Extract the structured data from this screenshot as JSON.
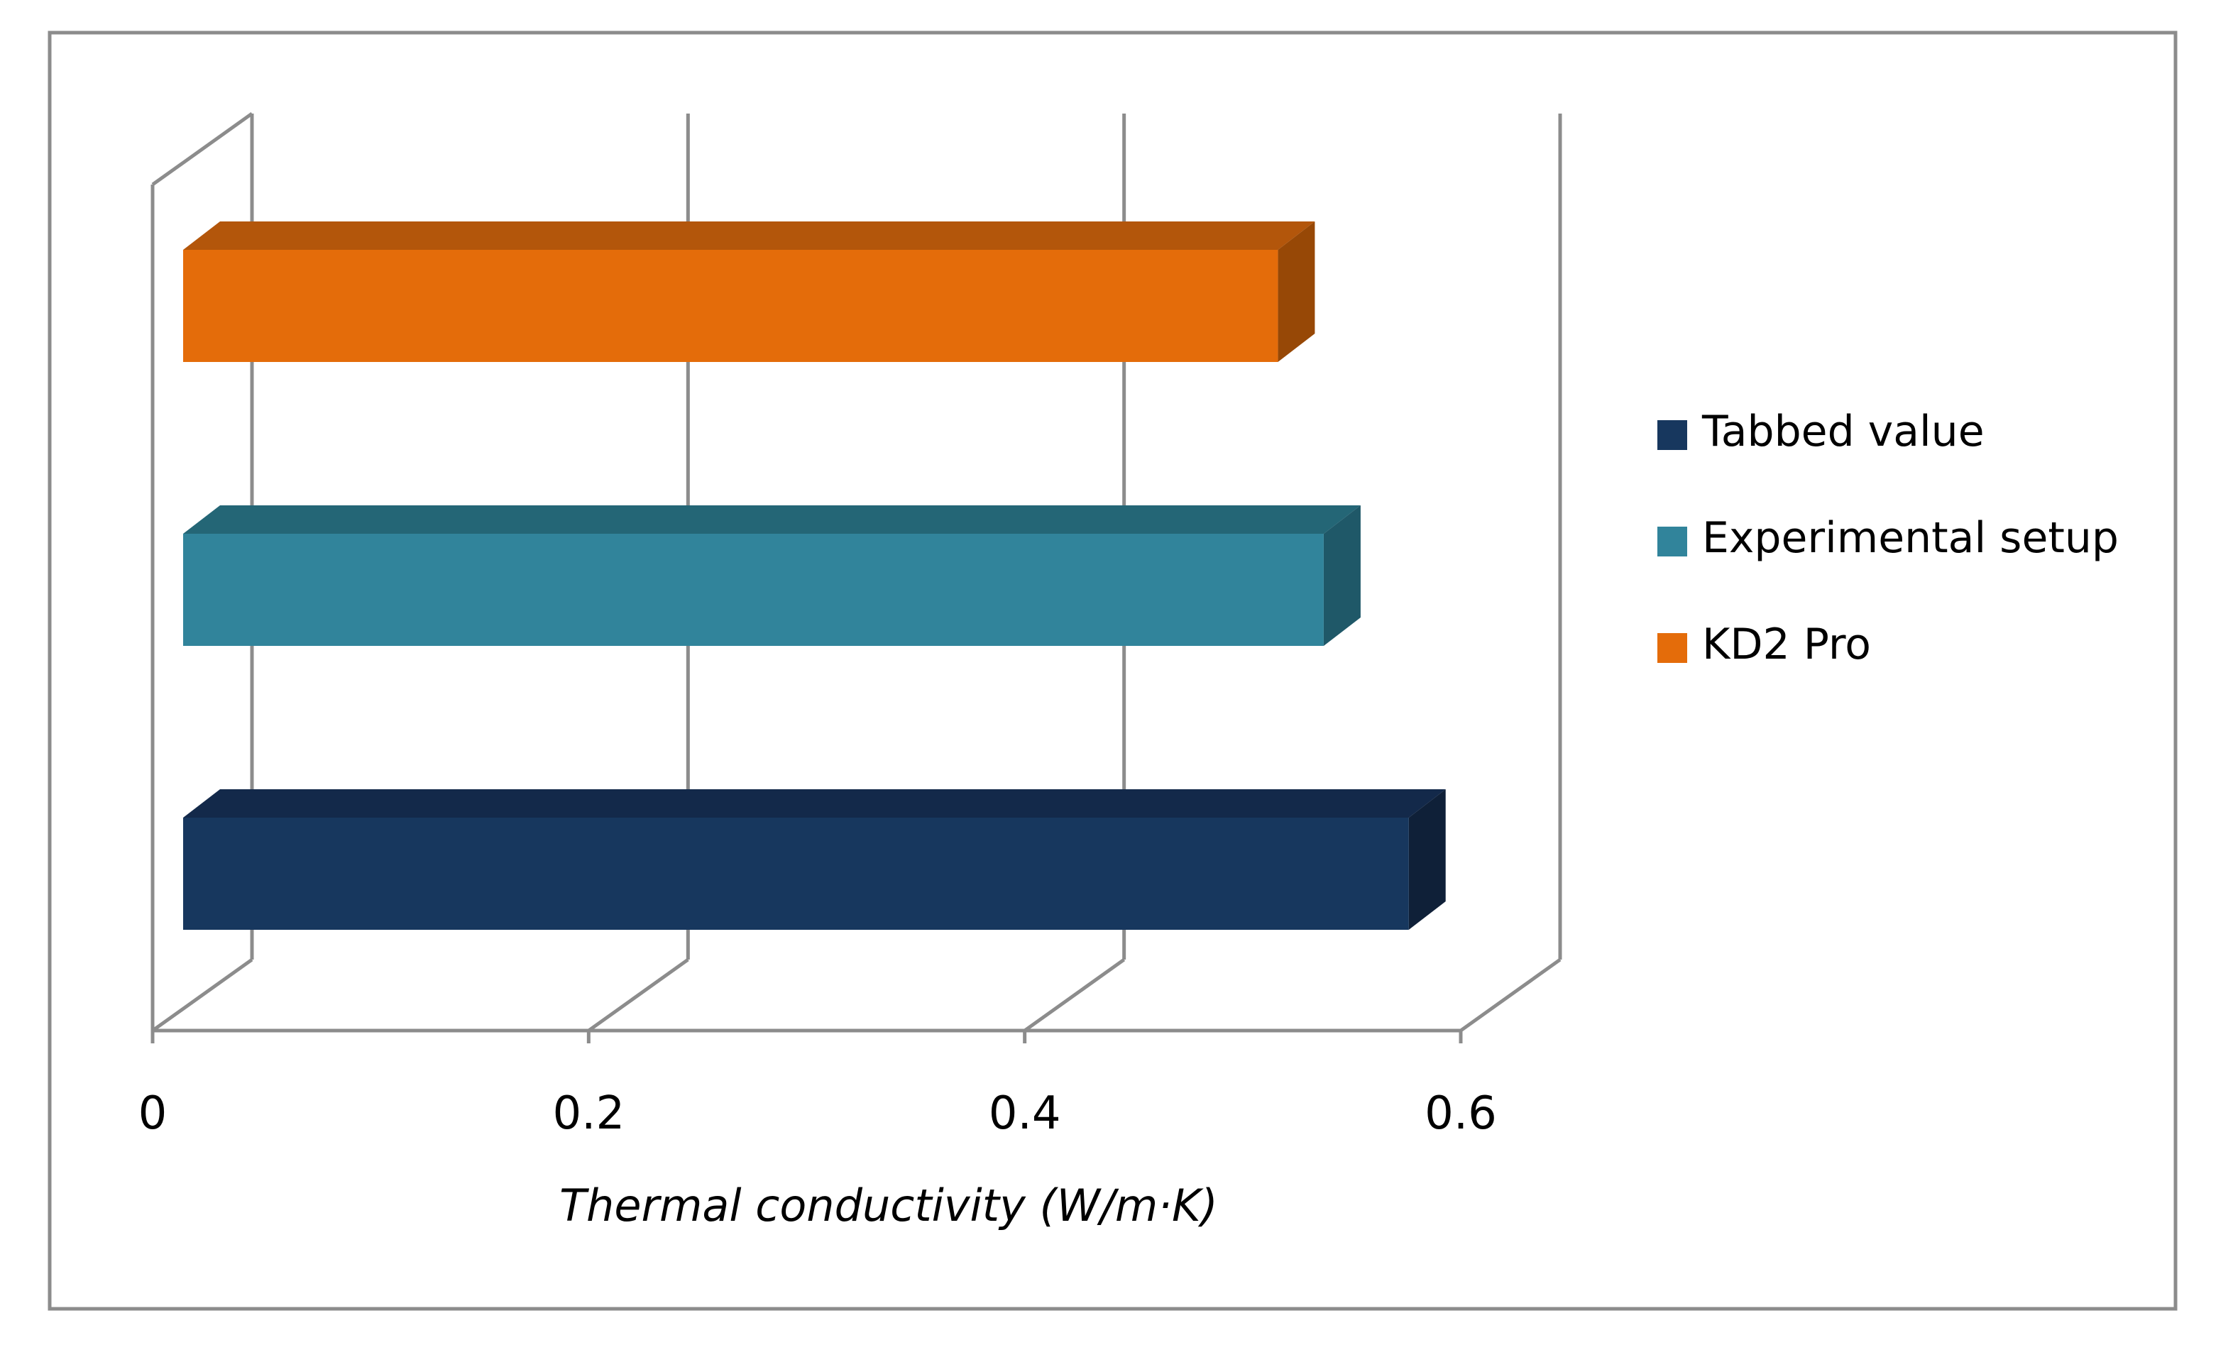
{
  "chart_data": {
    "type": "bar",
    "orientation": "horizontal",
    "style": "3d",
    "title": "",
    "xlabel": "Thermal conductivity (W/m·K)",
    "ylabel": "",
    "xlim": [
      0,
      0.6
    ],
    "ticks": [
      "0",
      "0.2",
      "0.4",
      "0.6"
    ],
    "grid": true,
    "legend_position": "right",
    "series": [
      {
        "name": "Tabbed value",
        "value": 0.582,
        "color": "#17375e",
        "top_color": "#13294a",
        "side_color": "#0f2038"
      },
      {
        "name": "Experimental setup",
        "value": 0.543,
        "color": "#31849b",
        "top_color": "#246676",
        "side_color": "#1f5868"
      },
      {
        "name": "KD2 Pro",
        "value": 0.522,
        "color": "#e46c0a",
        "top_color": "#b3560b",
        "side_color": "#974806"
      }
    ]
  },
  "legend": {
    "items": [
      {
        "label": "Tabbed value",
        "color": "#17375e"
      },
      {
        "label": "Experimental setup",
        "color": "#31849b"
      },
      {
        "label": "KD2 Pro",
        "color": "#e46c0a"
      }
    ]
  }
}
